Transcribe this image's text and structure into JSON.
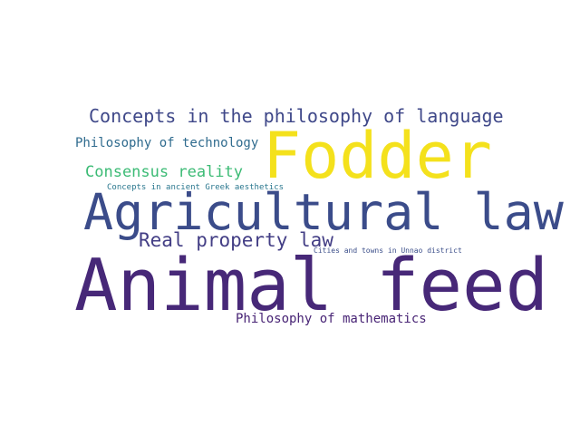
{
  "words": [
    {
      "text": "Concepts in the philosophy of language",
      "color": "#3f4889"
    },
    {
      "text": "Philosophy of technology",
      "color": "#2f6b8e"
    },
    {
      "text": "Fodder",
      "color": "#f4e11c"
    },
    {
      "text": "Consensus reality",
      "color": "#3cbb75"
    },
    {
      "text": "Concepts in ancient Greek aesthetics",
      "color": "#2a778e"
    },
    {
      "text": "Agricultural law",
      "color": "#3b4c8a"
    },
    {
      "text": "Real property law",
      "color": "#433e85"
    },
    {
      "text": "Cities and towns in Unnao district",
      "color": "#3c4f8a"
    },
    {
      "text": "Animal feed",
      "color": "#472878"
    },
    {
      "text": "Philosophy of mathematics",
      "color": "#482475"
    }
  ]
}
